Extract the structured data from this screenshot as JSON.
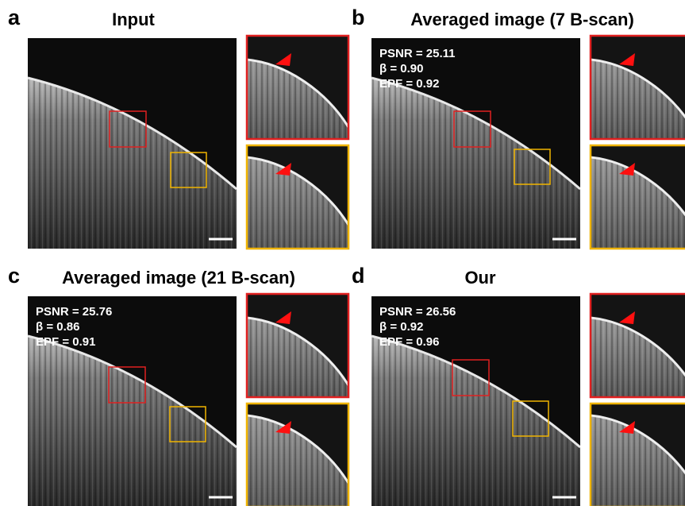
{
  "panels": [
    {
      "letter": "a",
      "title": "Input"
    },
    {
      "letter": "b",
      "title": "Averaged image (7 B-scan)",
      "metrics": [
        "PSNR = 25.11",
        "β = 0.90",
        "EPF = 0.92"
      ]
    },
    {
      "letter": "c",
      "title": "Averaged image (21 B-scan)",
      "metrics": [
        "PSNR = 25.76",
        "β = 0.86",
        "EPF = 0.91"
      ]
    },
    {
      "letter": "d",
      "title": "Our",
      "metrics": [
        "PSNR = 26.56",
        "β = 0.92",
        "EPF = 0.96"
      ]
    }
  ]
}
